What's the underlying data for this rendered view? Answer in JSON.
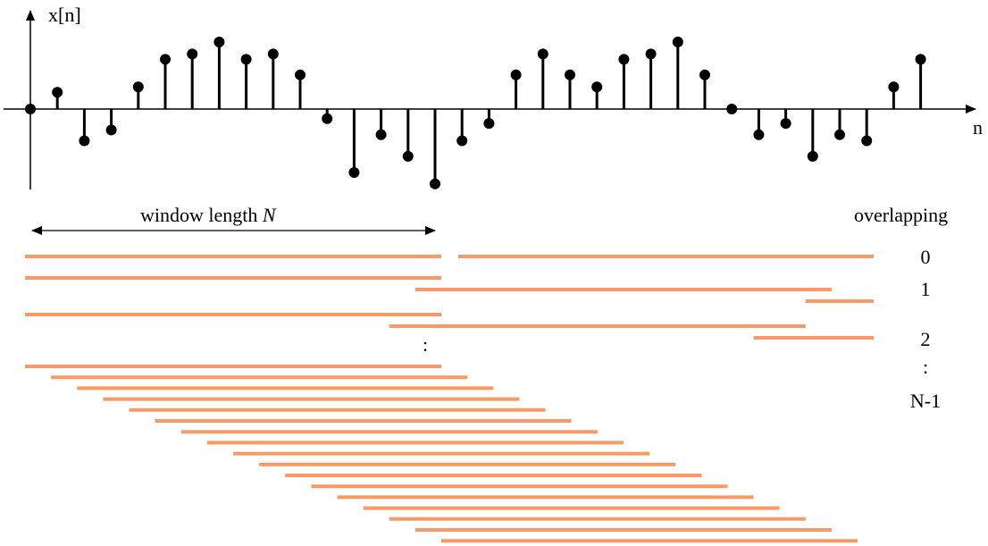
{
  "signal": {
    "y_label": "x[n]",
    "x_label": "n",
    "samples": [
      0,
      0.28,
      -0.53,
      -0.35,
      0.37,
      0.83,
      0.92,
      1.12,
      0.83,
      0.92,
      0.57,
      -0.16,
      -1.06,
      -0.43,
      -0.79,
      -1.25,
      -0.53,
      -0.24,
      0.57,
      0.92,
      0.57,
      0.37,
      0.83,
      0.92,
      1.12,
      0.57,
      0,
      -0.43,
      -0.24,
      -0.79,
      -0.43,
      -0.53,
      0.37,
      0.83
    ]
  },
  "window": {
    "label_text": "window length ",
    "label_symbol": "N",
    "length_samples": 16
  },
  "overlap": {
    "header": "overlapping",
    "labels": [
      "0",
      "1",
      "2",
      ":",
      "N-1"
    ],
    "group_continuation": ":",
    "color": "#F79A66"
  }
}
